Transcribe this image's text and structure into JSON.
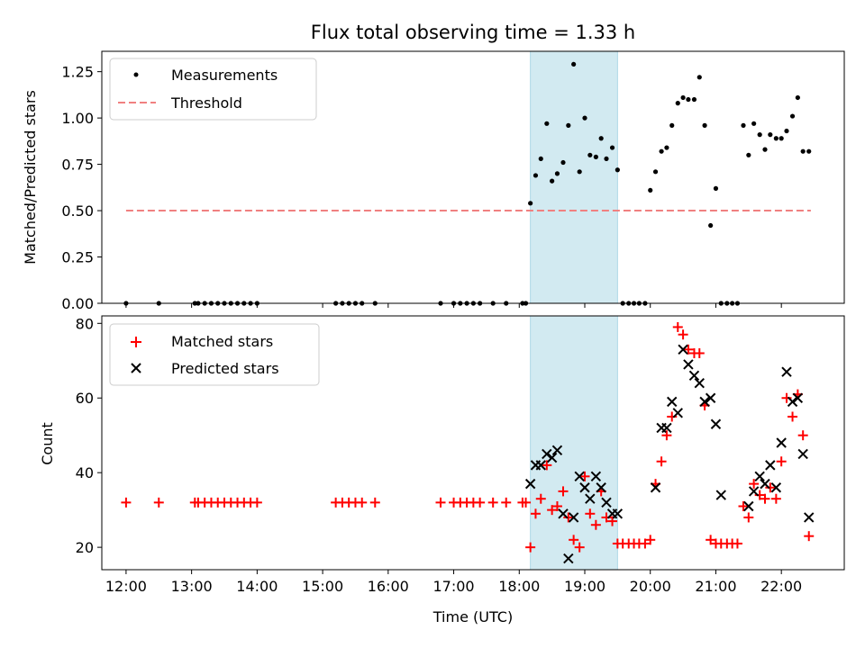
{
  "chart_data": [
    {
      "type": "scatter",
      "title": "Flux total observing time = 1.33 h",
      "ylabel": "Matched/Predicted stars",
      "xlabel": "",
      "xlim": [
        11.63,
        22.96
      ],
      "ylim": [
        0,
        1.36
      ],
      "yticks": [
        "0.00",
        "0.25",
        "0.50",
        "0.75",
        "1.00",
        "1.25"
      ],
      "ytick_values": [
        0,
        0.25,
        0.5,
        0.75,
        1.0,
        1.25
      ],
      "xtick_values": [
        12,
        13,
        14,
        15,
        16,
        17,
        18,
        19,
        20,
        21,
        22
      ],
      "shaded_span": [
        18.17,
        19.5
      ],
      "shaded_color": "#add8e6",
      "legend": {
        "placement": "upper-left",
        "entries": [
          "Measurements",
          "Threshold"
        ]
      },
      "series": [
        {
          "name": "Measurements",
          "marker": "dot",
          "color": "#000000",
          "x": [
            12.0,
            12.5,
            13.05,
            13.1,
            13.2,
            13.3,
            13.4,
            13.5,
            13.6,
            13.7,
            13.8,
            13.9,
            14.0,
            15.2,
            15.3,
            15.4,
            15.5,
            15.6,
            15.8,
            16.8,
            17.0,
            17.1,
            17.2,
            17.3,
            17.4,
            17.6,
            17.8,
            18.05,
            18.1,
            18.17,
            18.25,
            18.33,
            18.42,
            18.5,
            18.58,
            18.67,
            18.75,
            18.83,
            18.92,
            19.0,
            19.08,
            19.17,
            19.25,
            19.33,
            19.42,
            19.5,
            19.58,
            19.67,
            19.75,
            19.83,
            19.92,
            20.0,
            20.08,
            20.17,
            20.25,
            20.33,
            20.42,
            20.5,
            20.58,
            20.67,
            20.75,
            20.83,
            20.92,
            21.0,
            21.08,
            21.17,
            21.25,
            21.33,
            21.42,
            21.5,
            21.58,
            21.67,
            21.75,
            21.83,
            21.92,
            22.0,
            22.08,
            22.17,
            22.25,
            22.33,
            22.42
          ],
          "y": [
            0,
            0,
            0,
            0,
            0,
            0,
            0,
            0,
            0,
            0,
            0,
            0,
            0,
            0,
            0,
            0,
            0,
            0,
            0,
            0,
            0,
            0,
            0,
            0,
            0,
            0,
            0,
            0,
            0,
            0.54,
            0.69,
            0.78,
            0.97,
            0.66,
            0.7,
            0.76,
            0.96,
            1.29,
            0.71,
            1.0,
            0.8,
            0.79,
            0.89,
            0.78,
            0.84,
            0.72,
            0,
            0,
            0,
            0,
            0,
            0.61,
            0.71,
            0.82,
            0.84,
            0.96,
            1.08,
            1.11,
            1.1,
            1.1,
            1.22,
            0.96,
            0.42,
            0.62,
            0,
            0,
            0,
            0,
            0.96,
            0.8,
            0.97,
            0.91,
            0.83,
            0.91,
            0.89,
            0.89,
            0.93,
            1.01,
            1.11,
            0.82,
            0.82
          ]
        },
        {
          "name": "Threshold",
          "marker": "dashed-line",
          "color": "#f08080",
          "x": [
            12.0,
            22.45
          ],
          "y": [
            0.5,
            0.5
          ]
        }
      ]
    },
    {
      "type": "scatter",
      "title": "",
      "ylabel": "Count",
      "xlabel": "Time (UTC)",
      "xlim": [
        11.63,
        22.96
      ],
      "ylim": [
        14,
        82
      ],
      "yticks": [
        "20",
        "40",
        "60",
        "80"
      ],
      "ytick_values": [
        20,
        40,
        60,
        80
      ],
      "xticks": [
        "12:00",
        "13:00",
        "14:00",
        "15:00",
        "16:00",
        "17:00",
        "18:00",
        "19:00",
        "20:00",
        "21:00",
        "22:00"
      ],
      "xtick_values": [
        12,
        13,
        14,
        15,
        16,
        17,
        18,
        19,
        20,
        21,
        22
      ],
      "shaded_span": [
        18.17,
        19.5
      ],
      "shaded_color": "#add8e6",
      "legend": {
        "placement": "upper-left",
        "entries": [
          "Matched stars",
          "Predicted stars"
        ]
      },
      "series": [
        {
          "name": "Matched stars",
          "marker": "plus",
          "color": "#ff0000",
          "x": [
            12.0,
            12.5,
            13.05,
            13.1,
            13.2,
            13.3,
            13.4,
            13.5,
            13.6,
            13.7,
            13.8,
            13.9,
            14.0,
            15.2,
            15.3,
            15.4,
            15.5,
            15.6,
            15.8,
            16.8,
            17.0,
            17.1,
            17.2,
            17.3,
            17.4,
            17.6,
            17.8,
            18.05,
            18.1,
            18.17,
            18.25,
            18.33,
            18.42,
            18.5,
            18.58,
            18.67,
            18.75,
            18.83,
            18.92,
            19.0,
            19.08,
            19.17,
            19.25,
            19.33,
            19.42,
            19.5,
            19.58,
            19.67,
            19.75,
            19.83,
            19.92,
            20.0,
            20.08,
            20.17,
            20.25,
            20.33,
            20.42,
            20.5,
            20.58,
            20.67,
            20.75,
            20.83,
            20.92,
            21.0,
            21.08,
            21.17,
            21.25,
            21.33,
            21.42,
            21.5,
            21.58,
            21.67,
            21.75,
            21.83,
            21.92,
            22.0,
            22.08,
            22.17,
            22.25,
            22.33,
            22.42
          ],
          "y": [
            32,
            32,
            32,
            32,
            32,
            32,
            32,
            32,
            32,
            32,
            32,
            32,
            32,
            32,
            32,
            32,
            32,
            32,
            32,
            32,
            32,
            32,
            32,
            32,
            32,
            32,
            32,
            32,
            32,
            20,
            29,
            33,
            42,
            30,
            31,
            35,
            28,
            22,
            20,
            39,
            29,
            26,
            35,
            28,
            27,
            21,
            21,
            21,
            21,
            21,
            21,
            22,
            37,
            43,
            50,
            55,
            79,
            77,
            73,
            72,
            72,
            58,
            22,
            21,
            21,
            21,
            21,
            21,
            31,
            28,
            37,
            34,
            33,
            36,
            33,
            43,
            60,
            55,
            61,
            50,
            23
          ]
        },
        {
          "name": "Predicted stars",
          "marker": "x",
          "color": "#000000",
          "x": [
            18.17,
            18.25,
            18.33,
            18.42,
            18.5,
            18.58,
            18.67,
            18.75,
            18.83,
            18.92,
            19.0,
            19.08,
            19.17,
            19.25,
            19.33,
            19.42,
            19.5,
            20.08,
            20.17,
            20.25,
            20.33,
            20.42,
            20.5,
            20.58,
            20.67,
            20.75,
            20.83,
            20.92,
            21.0,
            21.08,
            21.5,
            21.58,
            21.67,
            21.75,
            21.83,
            21.92,
            22.0,
            22.08,
            22.17,
            22.25,
            22.33,
            22.42
          ],
          "y": [
            37,
            42,
            42,
            45,
            44,
            46,
            29,
            17,
            28,
            39,
            36,
            33,
            39,
            36,
            32,
            29,
            29,
            36,
            52,
            52,
            59,
            56,
            73,
            69,
            66,
            64,
            59,
            60,
            53,
            34,
            31,
            35,
            39,
            37,
            42,
            36,
            48,
            67,
            59,
            60,
            45,
            28
          ]
        }
      ]
    }
  ]
}
